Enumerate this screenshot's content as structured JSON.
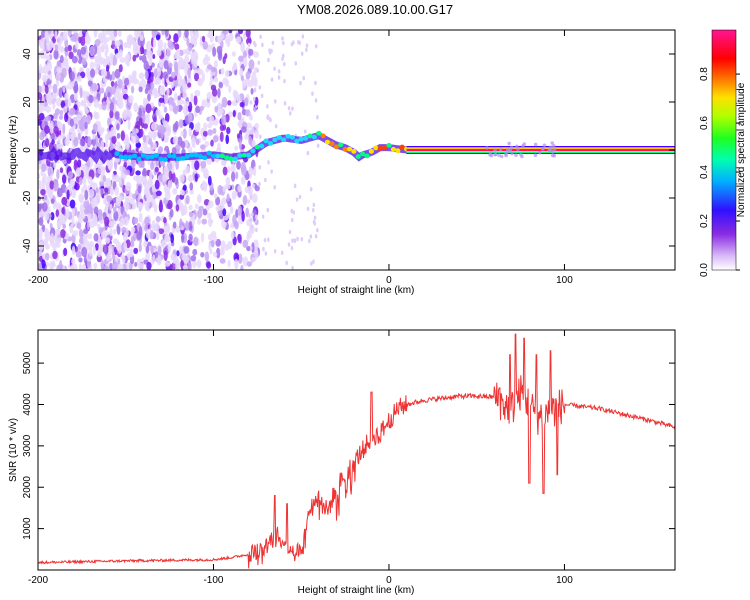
{
  "figure_title": "YM08.2026.089.10.00.G17",
  "chart_data": [
    {
      "type": "heatmap",
      "title": "",
      "xlabel": "Height of straight line (km)",
      "ylabel": "Frequency (Hz)",
      "xlim": [
        -200,
        163
      ],
      "ylim": [
        -50,
        50
      ],
      "xticks": [
        -200,
        -100,
        0,
        100
      ],
      "yticks": [
        -40,
        -20,
        0,
        20,
        40
      ],
      "colorbar": {
        "label": "Normalized spectral amplitude",
        "range": [
          0,
          1
        ],
        "ticks": [
          "0.0",
          "0.2",
          "0.4",
          "0.6",
          "0.8"
        ],
        "colormap": [
          "#ffffff",
          "#8a2be2",
          "#4000ff",
          "#00c0ff",
          "#00ff80",
          "#a0ff00",
          "#ffff00",
          "#ff8000",
          "#ff0000",
          "#ff1493"
        ]
      },
      "ridge_line": {
        "x": [
          -155,
          -140,
          -120,
          -100,
          -90,
          -80,
          -70,
          -60,
          -50,
          -40,
          -35,
          -30,
          -25,
          -20,
          -17,
          -15,
          -10,
          -5,
          0,
          10,
          60,
          100,
          163
        ],
        "y": [
          -2,
          -3,
          -3,
          -2,
          -3,
          -2,
          3,
          5,
          4,
          6,
          4,
          2,
          1,
          -1,
          -3,
          -2,
          -1,
          1,
          1,
          0,
          0,
          0,
          0
        ]
      },
      "noise_region_x": [
        -200,
        -80
      ],
      "coherent_region_x": [
        -40,
        163
      ]
    },
    {
      "type": "line",
      "title": "",
      "xlabel": "Height of straight line (km)",
      "ylabel": "SNR (10 * v/v)",
      "xlim": [
        -200,
        163
      ],
      "ylim": [
        0,
        5800
      ],
      "xticks": [
        -200,
        -100,
        0,
        100
      ],
      "yticks": [
        1000,
        2000,
        3000,
        4000,
        5000
      ],
      "color": "#ee3333",
      "series": [
        {
          "name": "SNR",
          "x": [
            -200,
            -150,
            -100,
            -90,
            -80,
            -70,
            -65,
            -60,
            -55,
            -50,
            -45,
            -40,
            -35,
            -30,
            -25,
            -20,
            -15,
            -10,
            -5,
            0,
            5,
            10,
            20,
            30,
            40,
            50,
            60,
            65,
            70,
            75,
            80,
            85,
            90,
            95,
            100,
            110,
            120,
            130,
            140,
            150,
            163
          ],
          "y": [
            180,
            220,
            250,
            300,
            380,
            550,
            900,
            700,
            500,
            450,
            1500,
            1800,
            1400,
            2000,
            2300,
            2600,
            2900,
            3200,
            3300,
            3600,
            3900,
            4000,
            4100,
            4150,
            4200,
            4200,
            4180,
            4000,
            3900,
            4300,
            4000,
            3700,
            3800,
            3900,
            4000,
            3950,
            3900,
            3800,
            3700,
            3600,
            3450
          ]
        }
      ],
      "spikes": [
        {
          "x": -65,
          "y": 1800
        },
        {
          "x": -58,
          "y": 1600
        },
        {
          "x": -10,
          "y": 4300
        },
        {
          "x": 63,
          "y": 4400
        },
        {
          "x": 69,
          "y": 5200
        },
        {
          "x": 72,
          "y": 5700
        },
        {
          "x": 77,
          "y": 5600
        },
        {
          "x": 80,
          "y": 2100
        },
        {
          "x": 84,
          "y": 5200
        },
        {
          "x": 88,
          "y": 1850
        },
        {
          "x": 92,
          "y": 5300
        },
        {
          "x": 96,
          "y": 2300
        }
      ]
    }
  ]
}
